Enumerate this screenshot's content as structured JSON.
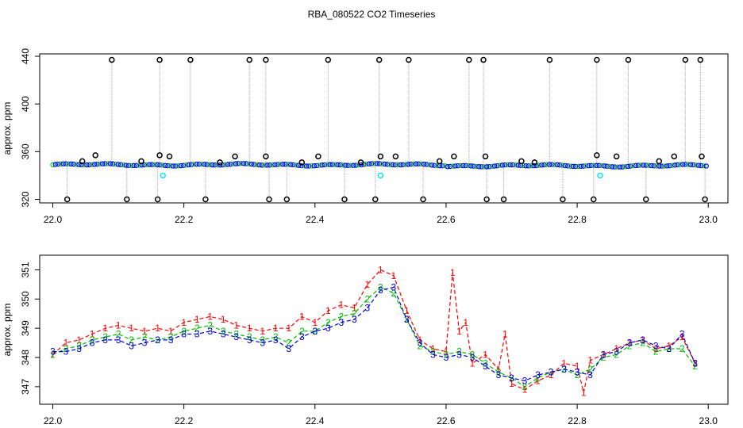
{
  "figure_title": "RBA_080522  CO2 Timeseries",
  "chart_data": [
    {
      "type": "scatter",
      "name": "raw-timeseries",
      "title": "RBA_080522  CO2 Timeseries",
      "xlabel": "",
      "ylabel": "approx. ppm",
      "xlim": [
        21.98,
        23.03
      ],
      "ylim": [
        317,
        442
      ],
      "x_ticks": [
        "22.0",
        "22.2",
        "22.4",
        "22.6",
        "22.8",
        "23.0"
      ],
      "y_ticks": [
        "320",
        "360",
        "400",
        "440"
      ],
      "baseline_ppm": 349,
      "high_spikes_ppm": 437,
      "low_spikes_ppm": 320,
      "high_spike_x": [
        22.09,
        22.163,
        22.21,
        22.3,
        22.325,
        22.42,
        22.498,
        22.543,
        22.635,
        22.657,
        22.758,
        22.83,
        22.878,
        22.965,
        22.988
      ],
      "low_spike_x": [
        22.022,
        22.113,
        22.16,
        22.233,
        22.33,
        22.357,
        22.445,
        22.492,
        22.565,
        22.662,
        22.688,
        22.778,
        22.825,
        22.905,
        22.995
      ],
      "black_near_points": [
        {
          "x": 22.045,
          "y": 352
        },
        {
          "x": 22.065,
          "y": 357
        },
        {
          "x": 22.135,
          "y": 352
        },
        {
          "x": 22.163,
          "y": 357
        },
        {
          "x": 22.178,
          "y": 356
        },
        {
          "x": 22.255,
          "y": 351
        },
        {
          "x": 22.278,
          "y": 356
        },
        {
          "x": 22.325,
          "y": 356
        },
        {
          "x": 22.38,
          "y": 351
        },
        {
          "x": 22.405,
          "y": 356
        },
        {
          "x": 22.47,
          "y": 351
        },
        {
          "x": 22.5,
          "y": 356
        },
        {
          "x": 22.523,
          "y": 356
        },
        {
          "x": 22.59,
          "y": 352
        },
        {
          "x": 22.612,
          "y": 356
        },
        {
          "x": 22.66,
          "y": 356
        },
        {
          "x": 22.715,
          "y": 352
        },
        {
          "x": 22.735,
          "y": 351
        },
        {
          "x": 22.83,
          "y": 357
        },
        {
          "x": 22.86,
          "y": 356
        },
        {
          "x": 22.925,
          "y": 352
        },
        {
          "x": 22.948,
          "y": 356
        },
        {
          "x": 22.99,
          "y": 356
        }
      ],
      "cyan_points": [
        {
          "x": 22.168,
          "y": 340
        },
        {
          "x": 22.5,
          "y": 340
        },
        {
          "x": 22.835,
          "y": 340
        }
      ],
      "colors": {
        "main": "#0000ff",
        "secondary": "#00cc00",
        "cyan": "#00e5ee",
        "line": "#a0a0a0",
        "red": "#ff0000"
      }
    },
    {
      "type": "line",
      "name": "filtered-timeseries",
      "xlabel": "",
      "ylabel": "approx. ppm",
      "xlim": [
        21.98,
        23.03
      ],
      "ylim": [
        346.4,
        351.5
      ],
      "x_ticks": [
        "22.0",
        "22.2",
        "22.4",
        "22.6",
        "22.8",
        "23.0"
      ],
      "y_ticks": [
        "347",
        "348",
        "349",
        "350",
        "351"
      ],
      "series": [
        {
          "name": "1",
          "color": "#ff0000",
          "values": [
            [
              22.0,
              348.1
            ],
            [
              22.02,
              348.5
            ],
            [
              22.04,
              348.6
            ],
            [
              22.06,
              348.8
            ],
            [
              22.08,
              349.0
            ],
            [
              22.1,
              349.1
            ],
            [
              22.12,
              349.0
            ],
            [
              22.14,
              348.9
            ],
            [
              22.16,
              349.0
            ],
            [
              22.18,
              348.9
            ],
            [
              22.2,
              349.2
            ],
            [
              22.22,
              349.3
            ],
            [
              22.24,
              349.4
            ],
            [
              22.26,
              349.3
            ],
            [
              22.28,
              349.1
            ],
            [
              22.3,
              349.0
            ],
            [
              22.32,
              348.9
            ],
            [
              22.34,
              349.0
            ],
            [
              22.36,
              349.0
            ],
            [
              22.38,
              349.4
            ],
            [
              22.4,
              349.2
            ],
            [
              22.42,
              349.6
            ],
            [
              22.44,
              349.8
            ],
            [
              22.46,
              349.7
            ],
            [
              22.48,
              350.5
            ],
            [
              22.5,
              351.0
            ],
            [
              22.52,
              350.8
            ],
            [
              22.54,
              349.6
            ],
            [
              22.56,
              348.6
            ],
            [
              22.58,
              348.3
            ],
            [
              22.6,
              348.2
            ],
            [
              22.61,
              350.9
            ],
            [
              22.62,
              348.9
            ],
            [
              22.63,
              349.2
            ],
            [
              22.64,
              347.8
            ],
            [
              22.66,
              348.1
            ],
            [
              22.68,
              347.6
            ],
            [
              22.69,
              348.8
            ],
            [
              22.7,
              347.1
            ],
            [
              22.72,
              346.9
            ],
            [
              22.74,
              347.2
            ],
            [
              22.76,
              347.4
            ],
            [
              22.78,
              347.8
            ],
            [
              22.8,
              347.7
            ],
            [
              22.81,
              346.8
            ],
            [
              22.82,
              347.9
            ],
            [
              22.84,
              348.1
            ],
            [
              22.86,
              348.3
            ],
            [
              22.88,
              348.5
            ],
            [
              22.9,
              348.6
            ],
            [
              22.92,
              348.3
            ],
            [
              22.94,
              348.4
            ],
            [
              22.96,
              348.7
            ],
            [
              22.98,
              347.8
            ]
          ]
        },
        {
          "name": "2",
          "color": "#00bb00",
          "values": [
            [
              22.0,
              348.1
            ],
            [
              22.02,
              348.3
            ],
            [
              22.04,
              348.4
            ],
            [
              22.06,
              348.6
            ],
            [
              22.08,
              348.7
            ],
            [
              22.1,
              348.8
            ],
            [
              22.12,
              348.6
            ],
            [
              22.14,
              348.7
            ],
            [
              22.16,
              348.6
            ],
            [
              22.18,
              348.7
            ],
            [
              22.2,
              348.9
            ],
            [
              22.22,
              349.0
            ],
            [
              22.24,
              349.1
            ],
            [
              22.26,
              348.9
            ],
            [
              22.28,
              348.8
            ],
            [
              22.3,
              348.7
            ],
            [
              22.32,
              348.6
            ],
            [
              22.34,
              348.7
            ],
            [
              22.36,
              348.5
            ],
            [
              22.38,
              348.9
            ],
            [
              22.4,
              348.9
            ],
            [
              22.42,
              349.2
            ],
            [
              22.44,
              349.4
            ],
            [
              22.46,
              349.5
            ],
            [
              22.48,
              350.0
            ],
            [
              22.5,
              350.4
            ],
            [
              22.52,
              350.2
            ],
            [
              22.54,
              349.3
            ],
            [
              22.56,
              348.4
            ],
            [
              22.58,
              348.2
            ],
            [
              22.6,
              348.1
            ],
            [
              22.62,
              348.2
            ],
            [
              22.64,
              348.1
            ],
            [
              22.66,
              347.8
            ],
            [
              22.68,
              347.5
            ],
            [
              22.7,
              347.3
            ],
            [
              22.72,
              347.0
            ],
            [
              22.74,
              347.3
            ],
            [
              22.76,
              347.5
            ],
            [
              22.78,
              347.6
            ],
            [
              22.8,
              347.4
            ],
            [
              22.82,
              347.6
            ],
            [
              22.84,
              348.0
            ],
            [
              22.86,
              348.1
            ],
            [
              22.88,
              348.4
            ],
            [
              22.9,
              348.5
            ],
            [
              22.92,
              348.2
            ],
            [
              22.94,
              348.3
            ],
            [
              22.96,
              348.3
            ],
            [
              22.98,
              347.7
            ]
          ]
        },
        {
          "name": "3",
          "color": "#0000dd",
          "values": [
            [
              22.0,
              348.2
            ],
            [
              22.02,
              348.2
            ],
            [
              22.04,
              348.3
            ],
            [
              22.06,
              348.5
            ],
            [
              22.08,
              348.6
            ],
            [
              22.1,
              348.6
            ],
            [
              22.12,
              348.4
            ],
            [
              22.14,
              348.5
            ],
            [
              22.16,
              348.6
            ],
            [
              22.18,
              348.6
            ],
            [
              22.2,
              348.8
            ],
            [
              22.22,
              348.8
            ],
            [
              22.24,
              348.9
            ],
            [
              22.26,
              348.8
            ],
            [
              22.28,
              348.7
            ],
            [
              22.3,
              348.6
            ],
            [
              22.32,
              348.5
            ],
            [
              22.34,
              348.6
            ],
            [
              22.36,
              348.3
            ],
            [
              22.38,
              348.7
            ],
            [
              22.4,
              348.9
            ],
            [
              22.42,
              349.0
            ],
            [
              22.44,
              349.2
            ],
            [
              22.46,
              349.3
            ],
            [
              22.48,
              349.7
            ],
            [
              22.5,
              350.3
            ],
            [
              22.52,
              350.4
            ],
            [
              22.54,
              349.3
            ],
            [
              22.56,
              348.5
            ],
            [
              22.58,
              348.1
            ],
            [
              22.6,
              348.0
            ],
            [
              22.62,
              348.1
            ],
            [
              22.64,
              348.0
            ],
            [
              22.66,
              347.7
            ],
            [
              22.68,
              347.4
            ],
            [
              22.7,
              347.3
            ],
            [
              22.72,
              347.2
            ],
            [
              22.74,
              347.4
            ],
            [
              22.76,
              347.5
            ],
            [
              22.78,
              347.6
            ],
            [
              22.8,
              347.5
            ],
            [
              22.82,
              347.4
            ],
            [
              22.84,
              348.1
            ],
            [
              22.86,
              348.2
            ],
            [
              22.88,
              348.5
            ],
            [
              22.9,
              348.6
            ],
            [
              22.92,
              348.4
            ],
            [
              22.94,
              348.3
            ],
            [
              22.96,
              348.8
            ],
            [
              22.98,
              347.8
            ]
          ]
        }
      ]
    }
  ]
}
